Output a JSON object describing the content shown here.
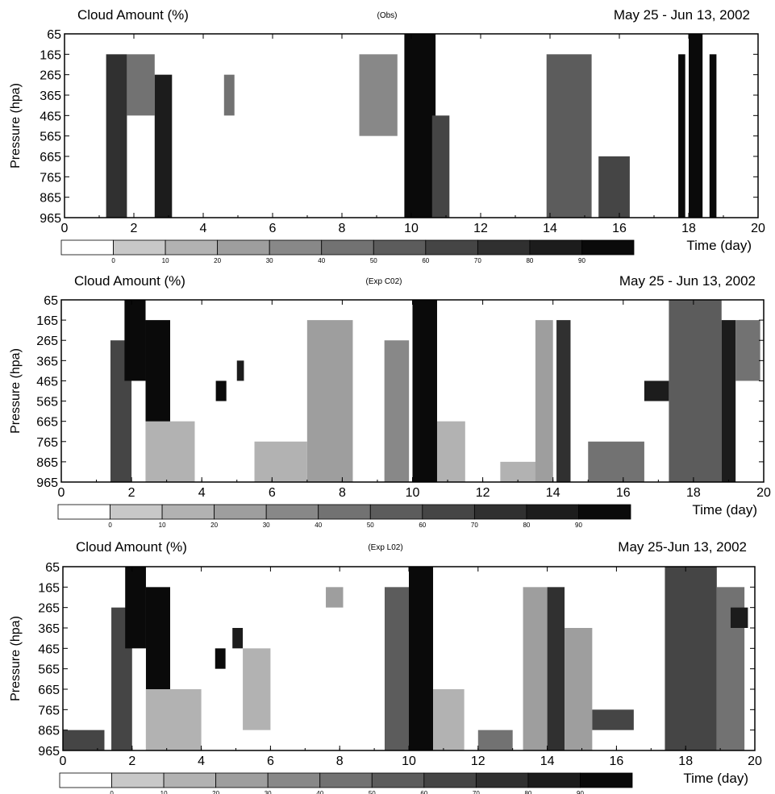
{
  "figure": {
    "colorbar_levels": [
      "0",
      "10",
      "20",
      "30",
      "40",
      "50",
      "60",
      "70",
      "80",
      "90"
    ],
    "colorbar_colors": [
      "#ffffff",
      "#c8c8c8",
      "#b2b2b2",
      "#9e9e9e",
      "#888888",
      "#727272",
      "#5c5c5c",
      "#454545",
      "#303030",
      "#1c1c1c",
      "#0a0a0a"
    ]
  },
  "chart_data": [
    {
      "type": "heatmap",
      "title": "Cloud Amount (%)",
      "subtitle": "(Obs)",
      "date_range": "May 25 - Jun 13, 2002",
      "xlabel": "Time  (day)",
      "ylabel": "Pressure  (hpa)",
      "x_ticks": [
        "0",
        "2",
        "4",
        "6",
        "8",
        "10",
        "12",
        "14",
        "16",
        "18",
        "20"
      ],
      "y_ticks": [
        "65",
        "165",
        "265",
        "365",
        "465",
        "565",
        "665",
        "765",
        "865",
        "965"
      ],
      "xlim": [
        0,
        20
      ],
      "ylim": [
        965,
        65
      ],
      "colorbar_label_percent": true,
      "cells": [
        {
          "t0": 1.2,
          "t1": 1.8,
          "p0": 165,
          "p1": 965,
          "v": 75
        },
        {
          "t0": 1.8,
          "t1": 2.6,
          "p0": 165,
          "p1": 465,
          "v": 45
        },
        {
          "t0": 2.6,
          "t1": 3.1,
          "p0": 265,
          "p1": 965,
          "v": 85
        },
        {
          "t0": 4.6,
          "t1": 4.9,
          "p0": 265,
          "p1": 465,
          "v": 40
        },
        {
          "t0": 8.5,
          "t1": 9.6,
          "p0": 165,
          "p1": 565,
          "v": 35
        },
        {
          "t0": 9.8,
          "t1": 10.7,
          "p0": 65,
          "p1": 965,
          "v": 92
        },
        {
          "t0": 10.6,
          "t1": 11.1,
          "p0": 465,
          "p1": 965,
          "v": 60
        },
        {
          "t0": 13.9,
          "t1": 15.2,
          "p0": 165,
          "p1": 965,
          "v": 55
        },
        {
          "t0": 15.4,
          "t1": 16.3,
          "p0": 665,
          "p1": 965,
          "v": 65
        },
        {
          "t0": 17.7,
          "t1": 17.9,
          "p0": 165,
          "p1": 965,
          "v": 90
        },
        {
          "t0": 18.0,
          "t1": 18.4,
          "p0": 65,
          "p1": 965,
          "v": 95
        },
        {
          "t0": 18.6,
          "t1": 18.8,
          "p0": 165,
          "p1": 965,
          "v": 90
        }
      ]
    },
    {
      "type": "heatmap",
      "title": "Cloud Amount (%)",
      "subtitle": "(Exp C02)",
      "date_range": "May 25 - Jun 13, 2002",
      "xlabel": "Time  (day)",
      "ylabel": "Pressure  (hpa)",
      "x_ticks": [
        "0",
        "2",
        "4",
        "6",
        "8",
        "10",
        "12",
        "14",
        "16",
        "18",
        "20"
      ],
      "y_ticks": [
        "65",
        "165",
        "265",
        "365",
        "465",
        "565",
        "665",
        "765",
        "865",
        "965"
      ],
      "xlim": [
        0,
        20
      ],
      "ylim": [
        965,
        65
      ],
      "cells": [
        {
          "t0": 1.4,
          "t1": 2.0,
          "p0": 265,
          "p1": 965,
          "v": 60
        },
        {
          "t0": 1.8,
          "t1": 2.4,
          "p0": 65,
          "p1": 465,
          "v": 95
        },
        {
          "t0": 2.4,
          "t1": 3.1,
          "p0": 165,
          "p1": 965,
          "v": 95
        },
        {
          "t0": 2.4,
          "t1": 3.8,
          "p0": 665,
          "p1": 965,
          "v": 15
        },
        {
          "t0": 4.4,
          "t1": 4.7,
          "p0": 465,
          "p1": 565,
          "v": 90
        },
        {
          "t0": 5.0,
          "t1": 5.2,
          "p0": 365,
          "p1": 465,
          "v": 85
        },
        {
          "t0": 5.5,
          "t1": 7.0,
          "p0": 765,
          "p1": 965,
          "v": 15
        },
        {
          "t0": 7.0,
          "t1": 8.3,
          "p0": 165,
          "p1": 965,
          "v": 20
        },
        {
          "t0": 9.2,
          "t1": 9.9,
          "p0": 265,
          "p1": 965,
          "v": 35
        },
        {
          "t0": 10.0,
          "t1": 10.7,
          "p0": 65,
          "p1": 965,
          "v": 95
        },
        {
          "t0": 10.7,
          "t1": 11.5,
          "p0": 665,
          "p1": 965,
          "v": 15
        },
        {
          "t0": 12.5,
          "t1": 14.0,
          "p0": 865,
          "p1": 965,
          "v": 15
        },
        {
          "t0": 13.5,
          "t1": 14.0,
          "p0": 165,
          "p1": 965,
          "v": 20
        },
        {
          "t0": 14.1,
          "t1": 14.5,
          "p0": 165,
          "p1": 965,
          "v": 70
        },
        {
          "t0": 15.0,
          "t1": 16.6,
          "p0": 765,
          "p1": 965,
          "v": 40
        },
        {
          "t0": 16.6,
          "t1": 17.3,
          "p0": 465,
          "p1": 565,
          "v": 80
        },
        {
          "t0": 17.3,
          "t1": 18.8,
          "p0": 65,
          "p1": 965,
          "v": 55
        },
        {
          "t0": 18.8,
          "t1": 19.2,
          "p0": 165,
          "p1": 965,
          "v": 85
        },
        {
          "t0": 19.2,
          "t1": 19.9,
          "p0": 165,
          "p1": 465,
          "v": 45
        }
      ]
    },
    {
      "type": "heatmap",
      "title": "Cloud Amount (%)",
      "subtitle": "(Exp L02)",
      "date_range": "May 25-Jun 13, 2002",
      "xlabel": "Time  (day)",
      "ylabel": "Pressure  (hpa)",
      "x_ticks": [
        "0",
        "2",
        "4",
        "6",
        "8",
        "10",
        "12",
        "14",
        "16",
        "18",
        "20"
      ],
      "y_ticks": [
        "65",
        "165",
        "265",
        "365",
        "465",
        "565",
        "665",
        "765",
        "865",
        "965"
      ],
      "xlim": [
        0,
        20
      ],
      "ylim": [
        965,
        65
      ],
      "cells": [
        {
          "t0": 0.0,
          "t1": 1.2,
          "p0": 865,
          "p1": 965,
          "v": 60
        },
        {
          "t0": 1.4,
          "t1": 2.0,
          "p0": 265,
          "p1": 965,
          "v": 60
        },
        {
          "t0": 1.8,
          "t1": 2.4,
          "p0": 65,
          "p1": 465,
          "v": 95
        },
        {
          "t0": 2.4,
          "t1": 3.1,
          "p0": 165,
          "p1": 965,
          "v": 95
        },
        {
          "t0": 2.4,
          "t1": 4.0,
          "p0": 665,
          "p1": 965,
          "v": 15
        },
        {
          "t0": 4.4,
          "t1": 4.7,
          "p0": 465,
          "p1": 565,
          "v": 90
        },
        {
          "t0": 4.9,
          "t1": 5.2,
          "p0": 365,
          "p1": 465,
          "v": 80
        },
        {
          "t0": 5.2,
          "t1": 6.0,
          "p0": 465,
          "p1": 865,
          "v": 15
        },
        {
          "t0": 7.6,
          "t1": 8.1,
          "p0": 165,
          "p1": 265,
          "v": 20
        },
        {
          "t0": 9.3,
          "t1": 10.0,
          "p0": 165,
          "p1": 965,
          "v": 50
        },
        {
          "t0": 10.0,
          "t1": 10.7,
          "p0": 65,
          "p1": 965,
          "v": 95
        },
        {
          "t0": 10.7,
          "t1": 11.6,
          "p0": 665,
          "p1": 965,
          "v": 15
        },
        {
          "t0": 12.0,
          "t1": 13.0,
          "p0": 865,
          "p1": 965,
          "v": 40
        },
        {
          "t0": 13.3,
          "t1": 14.0,
          "p0": 165,
          "p1": 965,
          "v": 20
        },
        {
          "t0": 14.0,
          "t1": 14.5,
          "p0": 165,
          "p1": 965,
          "v": 75
        },
        {
          "t0": 14.5,
          "t1": 15.3,
          "p0": 365,
          "p1": 965,
          "v": 20
        },
        {
          "t0": 15.3,
          "t1": 16.5,
          "p0": 765,
          "p1": 865,
          "v": 60
        },
        {
          "t0": 17.4,
          "t1": 18.9,
          "p0": 65,
          "p1": 965,
          "v": 65
        },
        {
          "t0": 18.9,
          "t1": 19.7,
          "p0": 165,
          "p1": 965,
          "v": 40
        },
        {
          "t0": 19.3,
          "t1": 19.8,
          "p0": 265,
          "p1": 365,
          "v": 85
        }
      ]
    }
  ]
}
